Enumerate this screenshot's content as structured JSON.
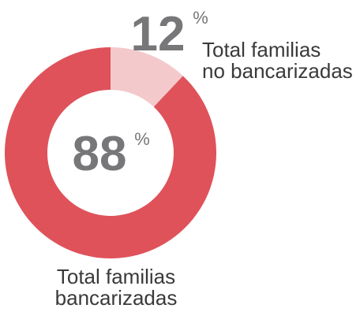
{
  "chart_data": {
    "type": "pie",
    "donut": true,
    "slices": [
      {
        "value": 88,
        "label": [
          "Total familias",
          "bancarizadas"
        ],
        "value_text": "88",
        "unit": "%",
        "color": "#df525a"
      },
      {
        "value": 12,
        "label": [
          "Total familias",
          "no bancarizadas"
        ],
        "value_text": "12",
        "unit": "%",
        "color": "#f4c9cb"
      }
    ],
    "value_text_color": "#77777a"
  }
}
